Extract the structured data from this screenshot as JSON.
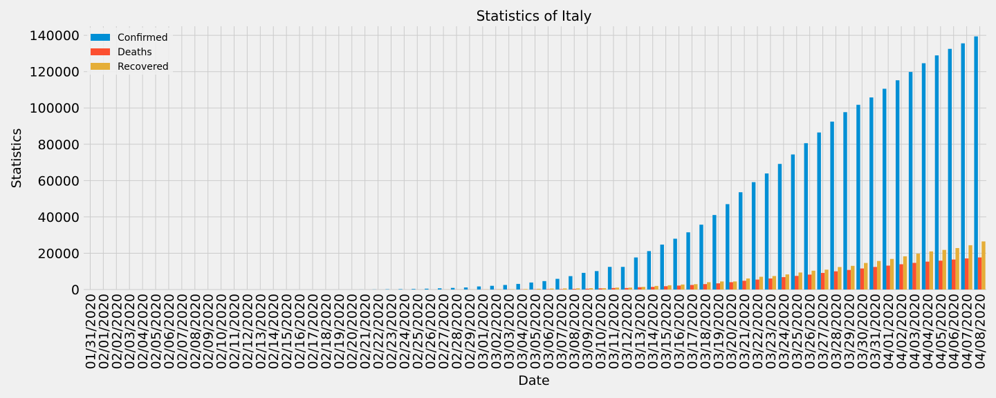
{
  "chart_data": {
    "type": "bar",
    "title": "Statistics of Italy",
    "xlabel": "Date",
    "ylabel": "Statistics",
    "ylim": [
      0,
      145000
    ],
    "yticks": [
      0,
      20000,
      40000,
      60000,
      80000,
      100000,
      120000,
      140000
    ],
    "grid": true,
    "legend_position": "top-left",
    "categories": [
      "01/31/2020",
      "02/01/2020",
      "02/02/2020",
      "02/03/2020",
      "02/04/2020",
      "02/05/2020",
      "02/06/2020",
      "02/07/2020",
      "02/08/2020",
      "02/09/2020",
      "02/10/2020",
      "02/11/2020",
      "02/12/2020",
      "02/13/2020",
      "02/14/2020",
      "02/15/2020",
      "02/16/2020",
      "02/17/2020",
      "02/18/2020",
      "02/19/2020",
      "02/20/2020",
      "02/21/2020",
      "02/22/2020",
      "02/23/2020",
      "02/24/2020",
      "02/25/2020",
      "02/26/2020",
      "02/27/2020",
      "02/28/2020",
      "02/29/2020",
      "03/01/2020",
      "03/02/2020",
      "03/03/2020",
      "03/04/2020",
      "03/05/2020",
      "03/06/2020",
      "03/07/2020",
      "03/08/2020",
      "03/09/2020",
      "03/10/2020",
      "03/11/2020",
      "03/12/2020",
      "03/13/2020",
      "03/14/2020",
      "03/15/2020",
      "03/16/2020",
      "03/17/2020",
      "03/18/2020",
      "03/19/2020",
      "03/20/2020",
      "03/21/2020",
      "03/22/2020",
      "03/23/2020",
      "03/24/2020",
      "03/25/2020",
      "03/26/2020",
      "03/27/2020",
      "03/28/2020",
      "03/29/2020",
      "03/30/2020",
      "03/31/2020",
      "04/01/2020",
      "04/02/2020",
      "04/03/2020",
      "04/04/2020",
      "04/05/2020",
      "04/06/2020",
      "04/07/2020",
      "04/08/2020"
    ],
    "series": [
      {
        "name": "Confirmed",
        "color": "#008fd5",
        "values": [
          2,
          2,
          2,
          2,
          2,
          2,
          3,
          3,
          3,
          3,
          3,
          3,
          3,
          3,
          3,
          3,
          3,
          3,
          3,
          3,
          3,
          20,
          62,
          155,
          229,
          322,
          453,
          655,
          888,
          1128,
          1694,
          2036,
          2502,
          3089,
          3858,
          4636,
          5883,
          7375,
          9172,
          10149,
          12462,
          12462,
          17660,
          21157,
          24747,
          27980,
          31506,
          35713,
          41035,
          47021,
          53578,
          59138,
          63927,
          69176,
          74386,
          80589,
          86498,
          92472,
          97689,
          101739,
          105792,
          110574,
          115242,
          119827,
          124632,
          128948,
          132547,
          135586,
          139422
        ]
      },
      {
        "name": "Deaths",
        "color": "#fc4f30",
        "values": [
          0,
          0,
          0,
          0,
          0,
          0,
          0,
          0,
          0,
          0,
          0,
          0,
          0,
          0,
          0,
          0,
          0,
          0,
          0,
          0,
          0,
          1,
          2,
          3,
          7,
          10,
          12,
          17,
          21,
          29,
          34,
          52,
          79,
          107,
          148,
          197,
          233,
          366,
          463,
          631,
          827,
          827,
          1266,
          1441,
          1809,
          2158,
          2503,
          2978,
          3405,
          4032,
          4825,
          5476,
          6077,
          6820,
          7503,
          8215,
          9134,
          10023,
          10779,
          11591,
          12428,
          13155,
          13915,
          14681,
          15362,
          15887,
          16523,
          17127,
          17669
        ]
      },
      {
        "name": "Recovered",
        "color": "#e5ae38",
        "values": [
          0,
          0,
          0,
          0,
          0,
          0,
          0,
          0,
          0,
          0,
          0,
          0,
          0,
          0,
          0,
          0,
          0,
          0,
          0,
          0,
          0,
          0,
          1,
          2,
          1,
          1,
          3,
          45,
          46,
          46,
          83,
          149,
          160,
          276,
          414,
          523,
          589,
          622,
          724,
          724,
          1045,
          1045,
          1439,
          1966,
          2335,
          2749,
          2941,
          4025,
          4440,
          4440,
          6072,
          7024,
          7432,
          8326,
          9362,
          10361,
          10950,
          12384,
          13030,
          14620,
          15729,
          16847,
          18278,
          19758,
          20996,
          21815,
          22837,
          24392,
          26491
        ]
      }
    ]
  }
}
